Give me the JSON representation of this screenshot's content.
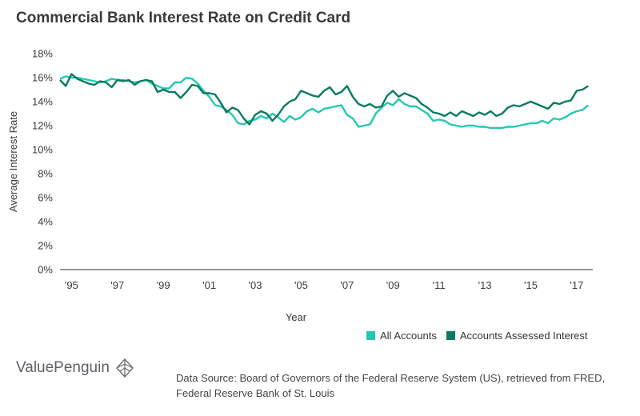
{
  "chart_data": {
    "type": "line",
    "title": "Commercial Bank Interest Rate on Credit Card",
    "xlabel": "Year",
    "ylabel": "Average Interest Rate",
    "xlim": [
      1994.5,
      2017.7
    ],
    "ylim": [
      0,
      18
    ],
    "y_ticks": [
      0,
      2,
      4,
      6,
      8,
      10,
      12,
      14,
      16,
      18
    ],
    "y_tick_labels": [
      "0%",
      "2%",
      "4%",
      "6%",
      "8%",
      "10%",
      "12%",
      "14%",
      "16%",
      "18%"
    ],
    "x_ticks": [
      1995,
      1997,
      1999,
      2001,
      2003,
      2005,
      2007,
      2009,
      2011,
      2013,
      2015,
      2017
    ],
    "x_tick_labels": [
      "'95",
      "'97",
      "'99",
      "'01",
      "'03",
      "'05",
      "'07",
      "'09",
      "'11",
      "'13",
      "'15",
      "'17"
    ],
    "grid": false,
    "legend_position": "bottom-right",
    "series": [
      {
        "name": "All Accounts",
        "color": "#21c9b1",
        "x": [
          1994.5,
          1994.75,
          1995,
          1995.25,
          1995.5,
          1995.75,
          1996,
          1996.25,
          1996.5,
          1996.75,
          1997,
          1997.25,
          1997.5,
          1997.75,
          1998,
          1998.25,
          1998.5,
          1998.75,
          1999,
          1999.25,
          1999.5,
          1999.75,
          2000,
          2000.25,
          2000.5,
          2000.75,
          2001,
          2001.25,
          2001.5,
          2001.75,
          2002,
          2002.25,
          2002.5,
          2002.75,
          2003,
          2003.25,
          2003.5,
          2003.75,
          2004,
          2004.25,
          2004.5,
          2004.75,
          2005,
          2005.25,
          2005.5,
          2005.75,
          2006,
          2006.25,
          2006.5,
          2006.75,
          2007,
          2007.25,
          2007.5,
          2007.75,
          2008,
          2008.25,
          2008.5,
          2008.75,
          2009,
          2009.25,
          2009.5,
          2009.75,
          2010,
          2010.25,
          2010.5,
          2010.75,
          2011,
          2011.25,
          2011.5,
          2011.75,
          2012,
          2012.25,
          2012.5,
          2012.75,
          2013,
          2013.25,
          2013.5,
          2013.75,
          2014,
          2014.25,
          2014.5,
          2014.75,
          2015,
          2015.25,
          2015.5,
          2015.75,
          2016,
          2016.25,
          2016.5,
          2016.75,
          2017,
          2017.25,
          2017.5
        ],
        "values": [
          15.9,
          16.1,
          16.0,
          16.0,
          15.9,
          15.8,
          15.7,
          15.6,
          15.7,
          15.9,
          15.8,
          15.8,
          15.7,
          15.6,
          15.7,
          15.8,
          15.5,
          15.3,
          15.1,
          15.1,
          15.6,
          15.6,
          16.0,
          15.9,
          15.5,
          14.9,
          14.4,
          13.7,
          13.6,
          13.3,
          12.9,
          12.2,
          12.1,
          12.4,
          12.5,
          12.8,
          12.6,
          13.0,
          12.7,
          12.3,
          12.8,
          12.5,
          12.7,
          13.2,
          13.4,
          13.1,
          13.4,
          13.5,
          13.6,
          13.7,
          12.9,
          12.6,
          11.9,
          12.0,
          12.1,
          13.0,
          13.5,
          13.9,
          13.7,
          14.2,
          13.8,
          13.6,
          13.6,
          13.3,
          13.0,
          12.4,
          12.5,
          12.4,
          12.1,
          12.0,
          11.9,
          12.0,
          12.0,
          11.9,
          11.9,
          11.8,
          11.8,
          11.8,
          11.9,
          11.9,
          12.0,
          12.1,
          12.2,
          12.2,
          12.4,
          12.2,
          12.6,
          12.5,
          12.7,
          13.0,
          13.2,
          13.3,
          13.7
        ]
      },
      {
        "name": "Accounts Assessed Interest",
        "color": "#0a7a60",
        "x": [
          1994.5,
          1994.75,
          1995,
          1995.25,
          1995.5,
          1995.75,
          1996,
          1996.25,
          1996.5,
          1996.75,
          1997,
          1997.25,
          1997.5,
          1997.75,
          1998,
          1998.25,
          1998.5,
          1998.75,
          1999,
          1999.25,
          1999.5,
          1999.75,
          2000,
          2000.25,
          2000.5,
          2000.75,
          2001,
          2001.25,
          2001.5,
          2001.75,
          2002,
          2002.25,
          2002.5,
          2002.75,
          2003,
          2003.25,
          2003.5,
          2003.75,
          2004,
          2004.25,
          2004.5,
          2004.75,
          2005,
          2005.25,
          2005.5,
          2005.75,
          2006,
          2006.25,
          2006.5,
          2006.75,
          2007,
          2007.25,
          2007.5,
          2007.75,
          2008,
          2008.25,
          2008.5,
          2008.75,
          2009,
          2009.25,
          2009.5,
          2009.75,
          2010,
          2010.25,
          2010.5,
          2010.75,
          2011,
          2011.25,
          2011.5,
          2011.75,
          2012,
          2012.25,
          2012.5,
          2012.75,
          2013,
          2013.25,
          2013.5,
          2013.75,
          2014,
          2014.25,
          2014.5,
          2014.75,
          2015,
          2015.25,
          2015.5,
          2015.75,
          2016,
          2016.25,
          2016.5,
          2016.75,
          2017,
          2017.25,
          2017.5
        ],
        "values": [
          15.8,
          15.3,
          16.3,
          15.9,
          15.7,
          15.5,
          15.4,
          15.7,
          15.6,
          15.2,
          15.8,
          15.7,
          15.8,
          15.4,
          15.7,
          15.8,
          15.7,
          14.8,
          15.0,
          14.8,
          14.8,
          14.3,
          14.8,
          15.4,
          15.3,
          14.7,
          14.7,
          14.6,
          13.9,
          13.1,
          13.5,
          13.3,
          12.6,
          12.1,
          12.9,
          13.2,
          13.0,
          12.4,
          12.9,
          13.6,
          14.0,
          14.2,
          14.9,
          14.7,
          14.5,
          14.4,
          14.9,
          15.2,
          14.6,
          14.8,
          15.3,
          14.4,
          13.8,
          13.6,
          13.8,
          13.5,
          13.6,
          14.5,
          14.9,
          14.4,
          14.7,
          14.5,
          14.3,
          13.8,
          13.5,
          13.1,
          13.0,
          12.8,
          13.1,
          12.8,
          13.2,
          13.0,
          12.8,
          13.1,
          12.9,
          13.2,
          12.8,
          13.0,
          13.5,
          13.7,
          13.6,
          13.8,
          14.0,
          13.8,
          13.6,
          13.4,
          13.9,
          13.8,
          14.0,
          14.1,
          14.9,
          15.0,
          15.3
        ]
      }
    ]
  },
  "brand": {
    "name": "ValuePenguin"
  },
  "source_text": "Data Source: Board of Governors of the Federal Reserve System (US), retrieved from FRED, Federal Reserve Bank of St. Louis"
}
